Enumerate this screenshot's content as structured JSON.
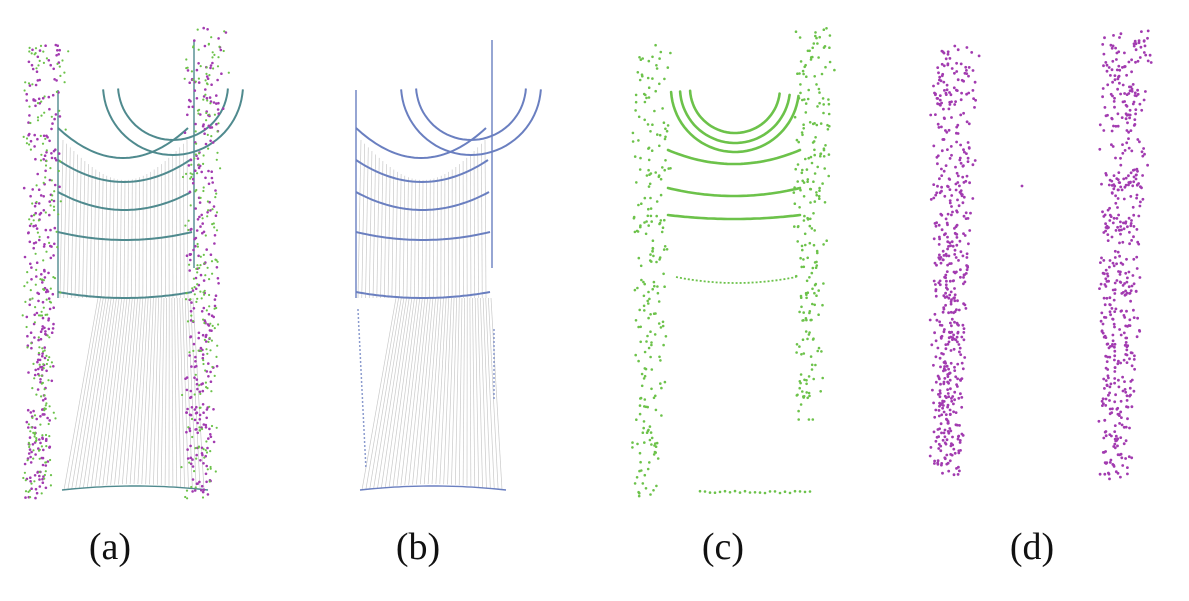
{
  "panels": [
    {
      "caption": "(a)"
    },
    {
      "caption": "(b)"
    },
    {
      "caption": "(c)"
    },
    {
      "caption": "(d)"
    }
  ],
  "colors": {
    "rays": "#c9c9c9",
    "scan_blue": "#6a7fc0",
    "scan_teal": "#4f8a8e",
    "points_green": "#6cc24a",
    "points_magenta": "#a23bb0"
  }
}
